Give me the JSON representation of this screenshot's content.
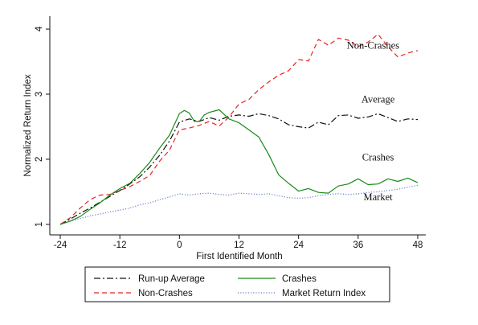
{
  "chart_data": {
    "type": "line",
    "xlabel": "First Identified Month",
    "ylabel": "Normalized Return Index",
    "xlim": [
      -24,
      48
    ],
    "ylim": [
      0.9,
      4.1
    ],
    "xticks": [
      "-24",
      "-12",
      "0",
      "12",
      "24",
      "36",
      "48"
    ],
    "yticks": [
      "1",
      "2",
      "3",
      "4"
    ],
    "grid": false,
    "legend_position": "bottom",
    "series": [
      {
        "key": "runup",
        "name": "Run-up Average",
        "color": "#111111",
        "dash": "long-dash-dot",
        "x": [
          -24,
          -22,
          -20,
          -18,
          -16,
          -14,
          -12,
          -10,
          -8,
          -6,
          -4,
          -2,
          0,
          2,
          4,
          6,
          8,
          10,
          12,
          14,
          16,
          18,
          20,
          22,
          24,
          26,
          28,
          30,
          32,
          34,
          36,
          38,
          40,
          42,
          44,
          46,
          48
        ],
        "y": [
          1.0,
          1.08,
          1.17,
          1.25,
          1.34,
          1.43,
          1.52,
          1.62,
          1.73,
          1.88,
          2.06,
          2.28,
          2.57,
          2.62,
          2.58,
          2.64,
          2.6,
          2.66,
          2.68,
          2.66,
          2.7,
          2.67,
          2.62,
          2.53,
          2.5,
          2.48,
          2.57,
          2.53,
          2.67,
          2.68,
          2.63,
          2.65,
          2.7,
          2.64,
          2.58,
          2.62,
          2.61
        ]
      },
      {
        "key": "nonCrashes",
        "name": "Non-Crashes",
        "color": "#e8231e",
        "dash": "dashed",
        "x": [
          -24,
          -22,
          -20,
          -18,
          -16,
          -14,
          -12,
          -10,
          -8,
          -6,
          -4,
          -2,
          0,
          2,
          4,
          6,
          8,
          10,
          12,
          14,
          16,
          18,
          20,
          22,
          24,
          26,
          28,
          30,
          32,
          34,
          36,
          38,
          40,
          42,
          44,
          46,
          48
        ],
        "y": [
          1.0,
          1.1,
          1.25,
          1.38,
          1.45,
          1.46,
          1.52,
          1.58,
          1.66,
          1.75,
          1.97,
          2.14,
          2.45,
          2.48,
          2.52,
          2.58,
          2.51,
          2.65,
          2.85,
          2.92,
          3.07,
          3.19,
          3.29,
          3.36,
          3.53,
          3.51,
          3.84,
          3.75,
          3.86,
          3.83,
          3.73,
          3.8,
          3.92,
          3.73,
          3.57,
          3.63,
          3.67
        ]
      },
      {
        "key": "crashes",
        "name": "Crashes",
        "color": "#1a8a1a",
        "dash": "solid",
        "x": [
          -24,
          -22,
          -20,
          -18,
          -16,
          -14,
          -12,
          -10,
          -8,
          -6,
          -4,
          -2,
          0,
          1,
          2,
          3,
          4,
          5,
          6,
          8,
          10,
          12,
          14,
          16,
          18,
          20,
          22,
          24,
          26,
          28,
          30,
          32,
          34,
          36,
          38,
          40,
          42,
          44,
          46,
          48
        ],
        "y": [
          1.0,
          1.05,
          1.12,
          1.23,
          1.33,
          1.45,
          1.55,
          1.63,
          1.78,
          1.95,
          2.17,
          2.37,
          2.7,
          2.75,
          2.71,
          2.58,
          2.58,
          2.68,
          2.72,
          2.76,
          2.62,
          2.56,
          2.45,
          2.34,
          2.07,
          1.76,
          1.63,
          1.51,
          1.55,
          1.49,
          1.48,
          1.59,
          1.62,
          1.7,
          1.61,
          1.62,
          1.7,
          1.66,
          1.71,
          1.64
        ]
      },
      {
        "key": "market",
        "name": "Market Return Index",
        "color": "#6b7fc8",
        "dash": "dotted",
        "x": [
          -24,
          -22,
          -20,
          -18,
          -16,
          -14,
          -12,
          -10,
          -8,
          -6,
          -4,
          -2,
          0,
          2,
          4,
          6,
          8,
          10,
          12,
          14,
          16,
          18,
          20,
          22,
          24,
          26,
          28,
          30,
          32,
          34,
          36,
          38,
          40,
          42,
          44,
          46,
          48
        ],
        "y": [
          1.0,
          1.05,
          1.09,
          1.13,
          1.16,
          1.19,
          1.22,
          1.25,
          1.3,
          1.33,
          1.38,
          1.42,
          1.47,
          1.45,
          1.47,
          1.48,
          1.46,
          1.45,
          1.48,
          1.47,
          1.46,
          1.47,
          1.44,
          1.41,
          1.4,
          1.41,
          1.44,
          1.46,
          1.47,
          1.46,
          1.47,
          1.49,
          1.5,
          1.52,
          1.54,
          1.57,
          1.6
        ]
      }
    ],
    "annotations": [
      {
        "key": "nonCrashes",
        "text": "Non-Crashes",
        "x": 39,
        "y": 3.7
      },
      {
        "key": "runup",
        "text": "Average",
        "x": 40,
        "y": 2.87
      },
      {
        "key": "crashes",
        "text": "Crashes",
        "x": 40,
        "y": 1.98
      },
      {
        "key": "market",
        "text": "Market",
        "x": 40,
        "y": 1.37
      }
    ],
    "legend": [
      {
        "series": "runup",
        "label": "Run-up Average"
      },
      {
        "series": "crashes",
        "label": "Crashes"
      },
      {
        "series": "nonCrashes",
        "label": "Non-Crashes"
      },
      {
        "series": "market",
        "label": "Market Return Index"
      }
    ]
  }
}
